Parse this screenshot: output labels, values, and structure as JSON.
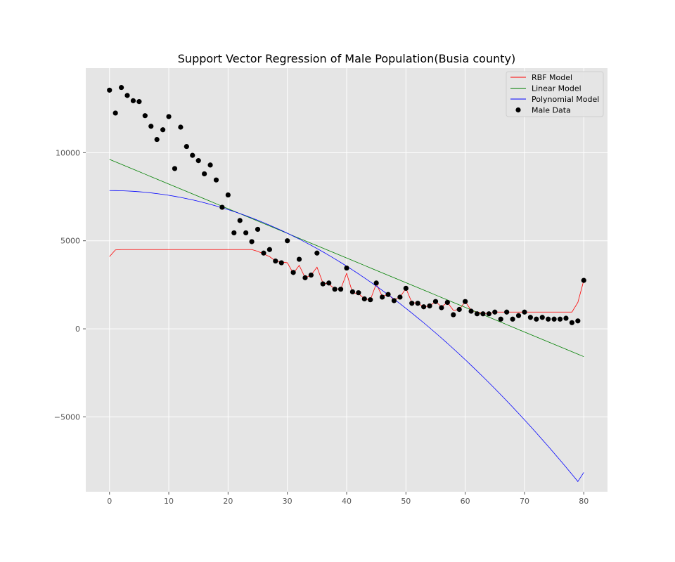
{
  "chart_data": {
    "type": "scatter",
    "title": "Support Vector Regression of Male Population(Busia county)",
    "xlabel": "",
    "ylabel": "",
    "xlim": [
      -4,
      84
    ],
    "ylim": [
      -9250,
      14800
    ],
    "xticks": [
      0,
      10,
      20,
      30,
      40,
      50,
      60,
      70,
      80
    ],
    "yticks": [
      -5000,
      0,
      5000,
      10000
    ],
    "ytick_labels": [
      "−5000",
      "0",
      "5000",
      "10000"
    ],
    "grid": true,
    "legend_position": "top-right",
    "legend": [
      "RBF Model",
      "Linear Model",
      "Polynomial Model",
      "Male Data"
    ],
    "x": [
      0,
      1,
      2,
      3,
      4,
      5,
      6,
      7,
      8,
      9,
      10,
      11,
      12,
      13,
      14,
      15,
      16,
      17,
      18,
      19,
      20,
      21,
      22,
      23,
      24,
      25,
      26,
      27,
      28,
      29,
      30,
      31,
      32,
      33,
      34,
      35,
      36,
      37,
      38,
      39,
      40,
      41,
      42,
      43,
      44,
      45,
      46,
      47,
      48,
      49,
      50,
      51,
      52,
      53,
      54,
      55,
      56,
      57,
      58,
      59,
      60,
      61,
      62,
      63,
      64,
      65,
      66,
      67,
      68,
      69,
      70,
      71,
      72,
      73,
      74,
      75,
      76,
      77,
      78,
      79,
      80
    ],
    "series": [
      {
        "name": "RBF Model",
        "kind": "line",
        "color": "#ff0000",
        "values": [
          4100,
          4480,
          4500,
          4500,
          4500,
          4500,
          4500,
          4500,
          4500,
          4500,
          4500,
          4500,
          4500,
          4500,
          4500,
          4500,
          4500,
          4500,
          4500,
          4500,
          4500,
          4500,
          4500,
          4500,
          4500,
          4400,
          4250,
          4100,
          3850,
          3800,
          3750,
          3150,
          3600,
          2900,
          3050,
          3500,
          2600,
          2550,
          2250,
          2250,
          3150,
          2050,
          2000,
          1700,
          1650,
          2550,
          1850,
          1950,
          1650,
          1800,
          2300,
          1500,
          1450,
          1250,
          1300,
          1550,
          1250,
          1500,
          1050,
          1100,
          1550,
          1050,
          950,
          900,
          850,
          950,
          950,
          950,
          950,
          950,
          950,
          950,
          950,
          950,
          950,
          950,
          950,
          950,
          950,
          1500,
          2750
        ]
      },
      {
        "name": "Linear Model",
        "kind": "line",
        "color": "#008000",
        "values": [
          9620,
          9480,
          9340,
          9200,
          9060,
          8920,
          8780,
          8640,
          8500,
          8360,
          8220,
          8080,
          7940,
          7800,
          7660,
          7520,
          7380,
          7240,
          7100,
          6960,
          6820,
          6680,
          6540,
          6400,
          6260,
          6120,
          5980,
          5840,
          5700,
          5560,
          5420,
          5280,
          5140,
          5000,
          4860,
          4720,
          4580,
          4440,
          4300,
          4160,
          4020,
          3880,
          3740,
          3600,
          3460,
          3320,
          3180,
          3040,
          2900,
          2760,
          2620,
          2480,
          2340,
          2200,
          2060,
          1920,
          1780,
          1640,
          1500,
          1360,
          1220,
          1080,
          940,
          800,
          660,
          520,
          380,
          240,
          100,
          -40,
          -180,
          -320,
          -460,
          -600,
          -740,
          -880,
          -1020,
          -1160,
          -1300,
          -1440,
          -1580
        ]
      },
      {
        "name": "Polynomial Model",
        "kind": "line",
        "color": "#0000ff",
        "values": [
          7850,
          7848,
          7840,
          7826,
          7808,
          7783,
          7754,
          7718,
          7677,
          7631,
          7580,
          7523,
          7460,
          7393,
          7320,
          7241,
          7158,
          7069,
          6974,
          6875,
          6770,
          6659,
          6544,
          6423,
          6296,
          6165,
          6028,
          5886,
          5738,
          5586,
          5428,
          5264,
          5096,
          4922,
          4743,
          4558,
          4369,
          4174,
          3974,
          3768,
          3558,
          3342,
          3121,
          2894,
          2663,
          2426,
          2184,
          1936,
          1684,
          1426,
          1163,
          894,
          621,
          342,
          58,
          -231,
          -525,
          -824,
          -1129,
          -1438,
          -1752,
          -2072,
          -2396,
          -2725,
          -3059,
          -3398,
          -3742,
          -4091,
          -4445,
          -4804,
          -5168,
          -5537,
          -5911,
          -6290,
          -6674,
          -7063,
          -7457,
          -7856,
          -8260,
          -8669,
          -8150
        ]
      },
      {
        "name": "Male Data",
        "kind": "scatter",
        "color": "#000000",
        "values": [
          13550,
          12250,
          13700,
          13250,
          12950,
          12900,
          12100,
          11500,
          10750,
          11300,
          12050,
          9100,
          11450,
          10350,
          9850,
          9550,
          8800,
          9300,
          8450,
          6900,
          7600,
          5450,
          6150,
          5450,
          4950,
          5650,
          4300,
          4500,
          3850,
          3750,
          5000,
          3200,
          3950,
          2900,
          3050,
          4300,
          2550,
          2600,
          2250,
          2250,
          3450,
          2100,
          2050,
          1700,
          1650,
          2600,
          1800,
          1950,
          1600,
          1800,
          2300,
          1450,
          1450,
          1250,
          1300,
          1550,
          1200,
          1500,
          800,
          1100,
          1550,
          1000,
          850,
          850,
          850,
          950,
          550,
          950,
          550,
          750,
          950,
          650,
          550,
          650,
          550,
          550,
          550,
          600,
          350,
          450,
          2750
        ]
      }
    ]
  }
}
